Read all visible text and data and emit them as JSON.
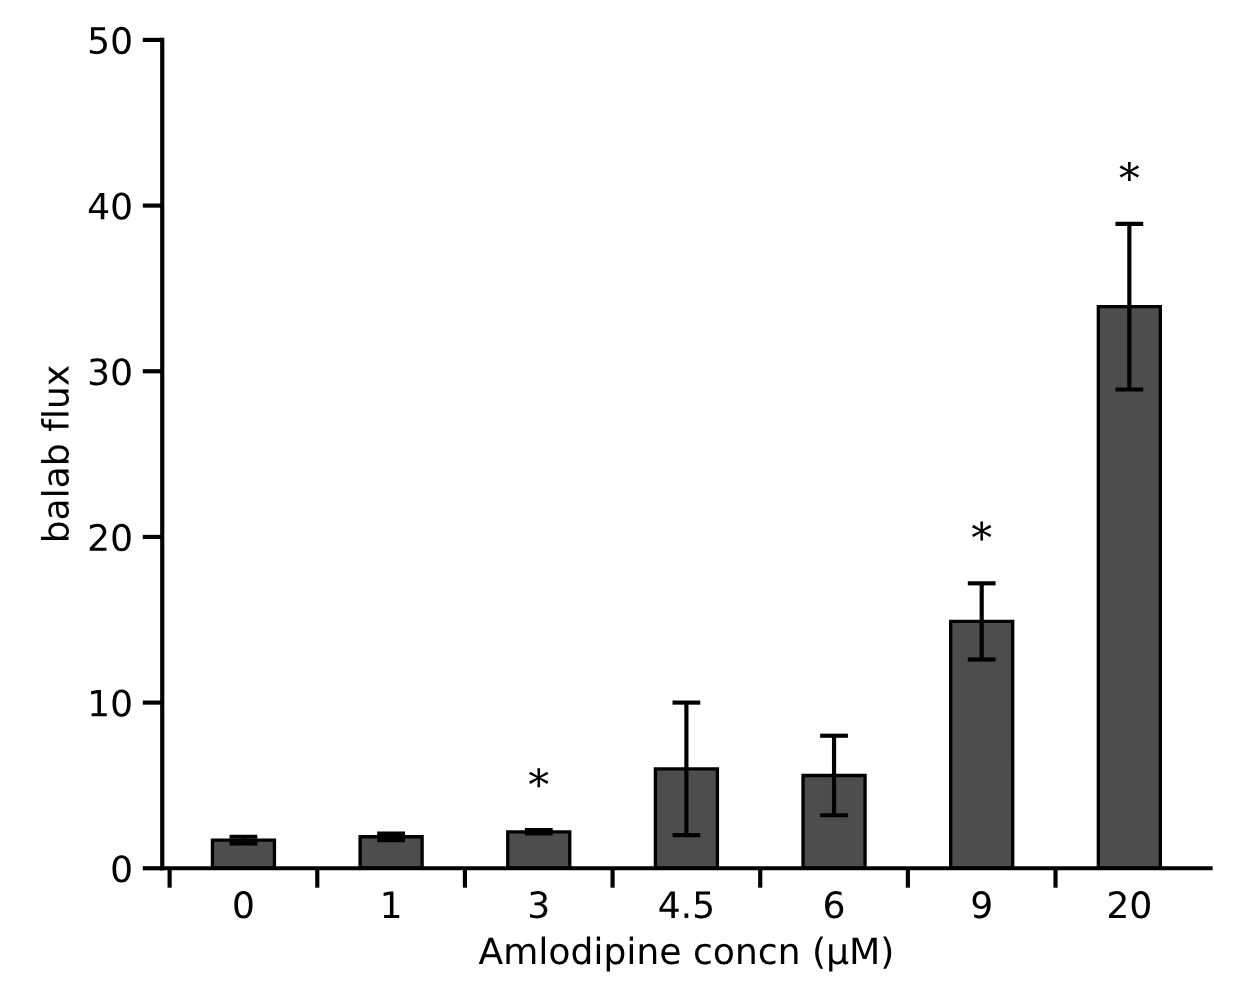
{
  "chart_data": {
    "type": "bar",
    "xlabel": "Amlodipine concn (μM)",
    "ylabel": "balab flux",
    "categories": [
      "0",
      "1",
      "3",
      "4.5",
      "6",
      "9",
      "20"
    ],
    "values": [
      1.7,
      1.9,
      2.2,
      6.0,
      5.6,
      14.9,
      33.9
    ],
    "errors": [
      0.2,
      0.2,
      0.1,
      4.0,
      2.4,
      2.3,
      5.0
    ],
    "color": "#4d4d4d",
    "ylim": [
      0,
      50
    ],
    "yticks": [
      0,
      10,
      20,
      30,
      40,
      50
    ],
    "grid": false,
    "annotations": [
      {
        "text": "*",
        "x": "3",
        "y": 2.3
      },
      {
        "text": "*",
        "x": "9",
        "y": 17.2
      },
      {
        "text": "*",
        "x": "20",
        "y": 38.9
      }
    ]
  }
}
